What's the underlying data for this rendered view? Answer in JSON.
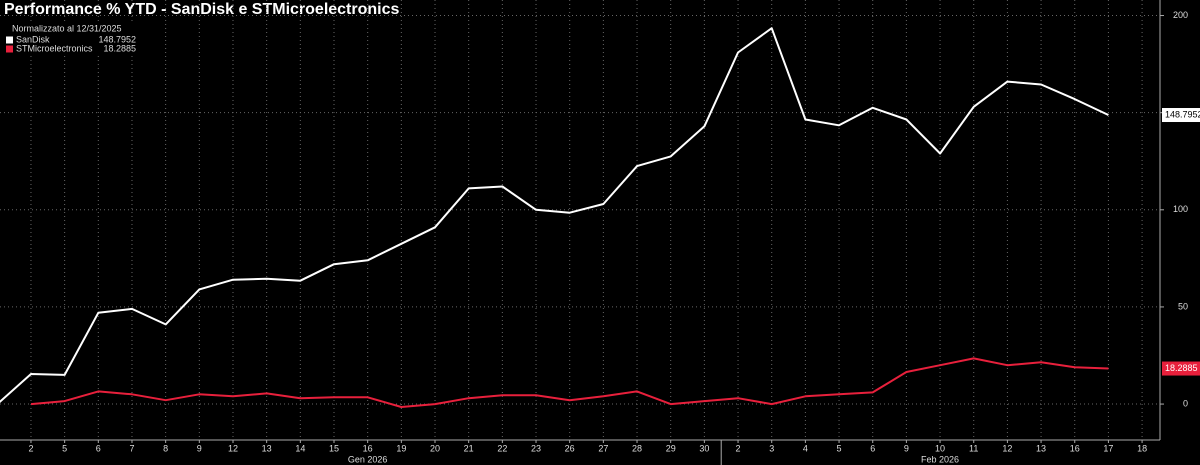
{
  "chart_data": {
    "type": "line",
    "title": "Performance % YTD - SanDisk e STMicroelectronics",
    "legend_title": "Normalizzato al 12/31/2025",
    "categories": [
      null,
      "2",
      "5",
      "6",
      "7",
      "8",
      "9",
      "12",
      "13",
      "14",
      "15",
      "16",
      "19",
      "20",
      "21",
      "22",
      "23",
      "26",
      "27",
      "28",
      "29",
      "30",
      "2",
      "3",
      "4",
      "5",
      "6",
      "9",
      "10",
      "11",
      "12",
      "13",
      "16",
      "17",
      "18"
    ],
    "x_groups": [
      {
        "label": "Gen 2026",
        "from": 1,
        "to": 21
      },
      {
        "label": "Feb 2026",
        "from": 22,
        "to": 34
      }
    ],
    "series": [
      {
        "name": "SanDisk",
        "color": "#ffffff",
        "label_text_color": "#000000",
        "values": [
          0,
          15.5,
          15,
          47,
          49,
          41,
          59,
          64,
          64.5,
          63.5,
          72,
          74,
          82.5,
          91,
          111,
          112,
          100,
          98.5,
          103,
          122.5,
          127.5,
          143,
          181,
          193.5,
          146.5,
          143.5,
          152.5,
          146.5,
          129,
          153,
          166,
          164.5,
          157,
          148.7952,
          null
        ]
      },
      {
        "name": "STMicroelectronics",
        "color": "#e8203c",
        "label_text_color": "#ffffff",
        "values": [
          null,
          0,
          1.5,
          6.5,
          5,
          2,
          5,
          4,
          5.5,
          3,
          3.5,
          3.5,
          -1.5,
          0,
          3,
          4.5,
          4.5,
          2,
          4,
          6.5,
          0,
          1.5,
          3,
          0,
          4,
          5,
          6,
          16.5,
          20,
          23.5,
          20,
          21.5,
          19,
          18.2885,
          null
        ]
      }
    ],
    "ylim": [
      -18.5,
      208
    ],
    "yticks": [
      0,
      50,
      100,
      150,
      200
    ],
    "grid": true,
    "legend": "upper left"
  }
}
